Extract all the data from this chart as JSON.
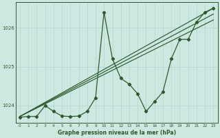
{
  "title": "Graphe pression niveau de la mer (hPa)",
  "bg_color": "#cce8e0",
  "line_color": "#2d5a2d",
  "grid_color": "#b0d8d0",
  "x_min": -0.5,
  "x_max": 23.5,
  "y_min": 1023.55,
  "y_max": 1026.65,
  "y_ticks": [
    1024,
    1025,
    1026
  ],
  "y_tick_labels": [
    "1024",
    "1025",
    "1026"
  ],
  "x_ticks": [
    0,
    1,
    2,
    3,
    4,
    5,
    6,
    7,
    8,
    9,
    10,
    11,
    12,
    13,
    14,
    15,
    16,
    17,
    18,
    19,
    20,
    21,
    22,
    23
  ],
  "series_x": [
    0,
    1,
    2,
    3,
    4,
    5,
    6,
    7,
    8,
    9,
    10,
    11,
    12,
    13,
    14,
    15,
    16,
    17,
    18,
    19,
    20,
    21,
    22,
    23
  ],
  "values_main": [
    1023.7,
    1023.72,
    1023.72,
    1024.0,
    1023.85,
    1023.73,
    1023.72,
    1023.73,
    1023.85,
    1024.2,
    1026.4,
    1025.2,
    1024.7,
    1024.55,
    1024.3,
    1023.85,
    1024.1,
    1024.35,
    1025.2,
    1025.7,
    1025.7,
    1026.15,
    1026.4,
    1026.5
  ],
  "trend1_x": [
    0,
    23
  ],
  "trend1_y": [
    1023.72,
    1026.2
  ],
  "trend2_x": [
    0,
    23
  ],
  "trend2_y": [
    1023.72,
    1026.35
  ],
  "trend3_x": [
    0,
    23
  ],
  "trend3_y": [
    1023.72,
    1026.5
  ],
  "figwidth": 3.2,
  "figheight": 2.0,
  "dpi": 100
}
